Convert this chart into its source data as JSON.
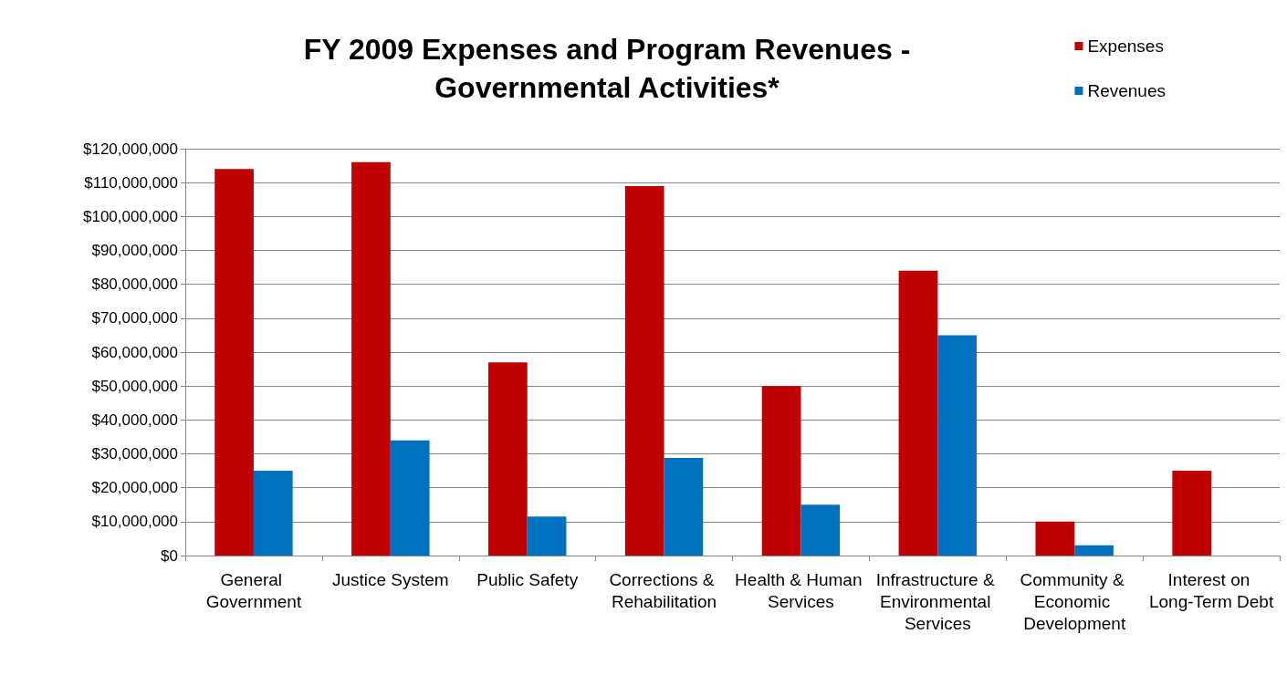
{
  "chart_data": {
    "type": "bar",
    "title": "FY 2009 Expenses and Program Revenues -\nGovernmental Activities*",
    "categories": [
      "General Government",
      "Justice System",
      "Public Safety",
      "Corrections & Rehabilitation",
      "Health & Human Services",
      "Infrastructure & Environmental Services",
      "Community & Economic Development",
      "Interest on Long-Term Debt"
    ],
    "series": [
      {
        "name": "Expenses",
        "color": "#c00000",
        "values": [
          114000000,
          116000000,
          57000000,
          109000000,
          50000000,
          84000000,
          10000000,
          25000000
        ]
      },
      {
        "name": "Revenues",
        "color": "#0070c0",
        "values": [
          25000000,
          34000000,
          11500000,
          28800000,
          15000000,
          65000000,
          3000000,
          0
        ]
      }
    ],
    "ylim": [
      0,
      120000000
    ],
    "yticks": [
      {
        "value": 0,
        "label": "$0"
      },
      {
        "value": 10000000,
        "label": "$10,000,000"
      },
      {
        "value": 20000000,
        "label": "$20,000,000"
      },
      {
        "value": 30000000,
        "label": "$30,000,000"
      },
      {
        "value": 40000000,
        "label": "$40,000,000"
      },
      {
        "value": 50000000,
        "label": "$50,000,000"
      },
      {
        "value": 60000000,
        "label": "$60,000,000"
      },
      {
        "value": 70000000,
        "label": "$70,000,000"
      },
      {
        "value": 80000000,
        "label": "$80,000,000"
      },
      {
        "value": 90000000,
        "label": "$90,000,000"
      },
      {
        "value": 100000000,
        "label": "$100,000,000"
      },
      {
        "value": 110000000,
        "label": "$110,000,000"
      },
      {
        "value": 120000000,
        "label": "$120,000,000"
      }
    ],
    "grid": "y",
    "legend": "top right"
  }
}
